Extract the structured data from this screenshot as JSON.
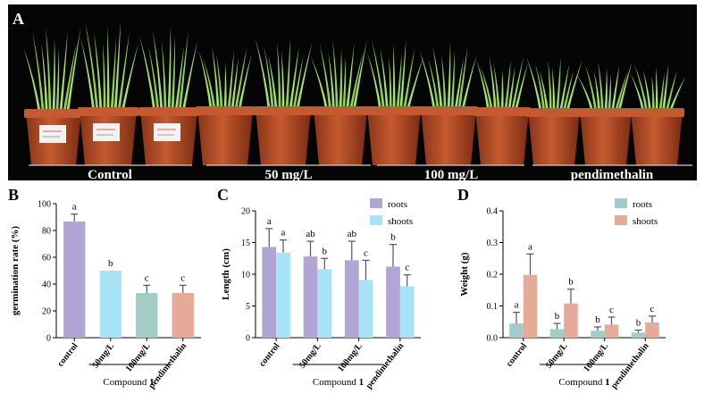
{
  "panels": {
    "A": "A",
    "B": "B",
    "C": "C",
    "D": "D"
  },
  "photo": {
    "groups": [
      "Control",
      "50 mg/L",
      "100 mg/L",
      "pendimethalin"
    ],
    "colors": {
      "background": "#050505",
      "pot": "#b24a24",
      "pot_rim": "#c55a30",
      "leaf": "#8fd35a"
    }
  },
  "chart_data": [
    {
      "id": "B",
      "type": "bar",
      "title": "",
      "xlabel": "",
      "ylabel": "germination rate (%)",
      "ylim": [
        0,
        100
      ],
      "yticks": [
        "0",
        "20",
        "40",
        "60",
        "80",
        "100"
      ],
      "categories": [
        "control",
        "50mg/L",
        "100mg/L",
        "pendimethalin"
      ],
      "group_label_prefix": "Compound ",
      "group_label_bold": "1",
      "series": [
        {
          "values": [
            86.7,
            50,
            33.3,
            33.3
          ],
          "errors": [
            5.5,
            0,
            5.8,
            5.8
          ],
          "letters": [
            "a",
            "b",
            "c",
            "c"
          ],
          "colors": [
            "#b1a5d6",
            "#a6e3f6",
            "#a2ccc5",
            "#e5aa98"
          ]
        }
      ]
    },
    {
      "id": "C",
      "type": "bar",
      "title": "",
      "xlabel": "",
      "ylabel": "Length  (cm)",
      "ylim": [
        0,
        20
      ],
      "yticks": [
        "0",
        "5",
        "10",
        "15",
        "20"
      ],
      "categories": [
        "control",
        "50mg/L",
        "100mg/L",
        "pendimethalin"
      ],
      "group_label_prefix": "Compound ",
      "group_label_bold": "1",
      "legend": {
        "position": "top-right"
      },
      "series": [
        {
          "name": "roots",
          "color": "#b1a5d6",
          "values": [
            14.3,
            12.8,
            12.2,
            11.2
          ],
          "errors": [
            2.9,
            2.4,
            3.0,
            3.5
          ],
          "letters": [
            "a",
            "ab",
            "ab",
            "b"
          ]
        },
        {
          "name": "shoots",
          "color": "#a6e3f6",
          "values": [
            13.4,
            10.8,
            9.1,
            8.1
          ],
          "errors": [
            2.0,
            1.7,
            3.1,
            1.8
          ],
          "letters": [
            "a",
            "b",
            "c",
            "c"
          ]
        }
      ]
    },
    {
      "id": "D",
      "type": "bar",
      "title": "",
      "xlabel": "",
      "ylabel": "Weight  (g)",
      "ylim": [
        0,
        0.4
      ],
      "yticks": [
        "0.0",
        "0.1",
        "0.2",
        "0.3",
        "0.4"
      ],
      "categories": [
        "control",
        "50mg/L",
        "100mg/L",
        "pendimethalin"
      ],
      "group_label_prefix": "Compound ",
      "group_label_bold": "1",
      "legend": {
        "position": "top-right"
      },
      "series": [
        {
          "name": "roots",
          "color": "#a2ccc5",
          "values": [
            0.045,
            0.027,
            0.022,
            0.016
          ],
          "errors": [
            0.035,
            0.018,
            0.012,
            0.008
          ],
          "letters": [
            "a",
            "b",
            "b",
            "b"
          ]
        },
        {
          "name": "shoots",
          "color": "#e5aa98",
          "values": [
            0.198,
            0.108,
            0.041,
            0.048
          ],
          "errors": [
            0.066,
            0.045,
            0.024,
            0.02
          ],
          "letters": [
            "a",
            "b",
            "c",
            "c"
          ]
        }
      ]
    }
  ]
}
